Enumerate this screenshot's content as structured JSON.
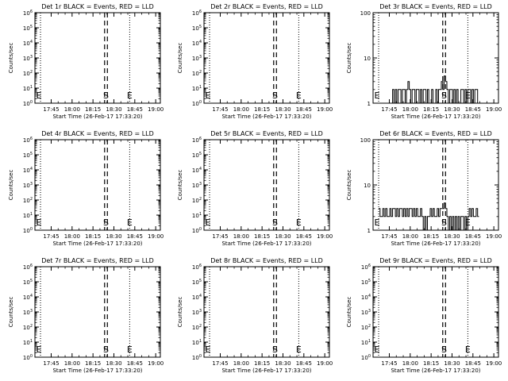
{
  "colors": {
    "events": "#000000",
    "lld": "#ff0000",
    "background": "#ffffff"
  },
  "common": {
    "x_axis_label": "Start Time (26-Feb-17 17:33:20)",
    "y_axis_label": "Counts/sec",
    "s_marker": "S",
    "e_marker": "E"
  },
  "chart_data": [
    {
      "type": "line",
      "title": "Det 1r BLACK = Events, RED = LLD",
      "yscale": "log",
      "ylim": [
        1,
        1000000
      ],
      "ytick_labels": [
        "10^0",
        "10^1",
        "10^2",
        "10^3",
        "10^4",
        "10^5",
        "10^6"
      ],
      "xtick_labels": [
        "17:45",
        "18:00",
        "18:15",
        "18:30",
        "18:45",
        "19:00"
      ],
      "xlim_min": [
        0,
        90
      ],
      "dotted_lines_min": [
        4,
        90
      ],
      "dashed_lines_min": [
        50,
        52
      ],
      "e_lines_min": [
        4,
        68
      ],
      "s_marker_min": 51,
      "e_marker_min": [
        0,
        68
      ],
      "series": []
    },
    {
      "type": "line",
      "title": "Det 2r BLACK = Events, RED = LLD",
      "yscale": "log",
      "ylim": [
        1,
        1000000
      ],
      "ytick_labels": [
        "10^0",
        "10^1",
        "10^2",
        "10^3",
        "10^4",
        "10^5",
        "10^6"
      ],
      "xtick_labels": [
        "17:45",
        "18:00",
        "18:15",
        "18:30",
        "18:45",
        "19:00"
      ],
      "xlim_min": [
        0,
        90
      ],
      "dotted_lines_min": [
        4,
        90
      ],
      "dashed_lines_min": [
        50,
        52
      ],
      "e_lines_min": [
        4,
        68
      ],
      "s_marker_min": 51,
      "e_marker_min": [
        0,
        68
      ],
      "series": []
    },
    {
      "type": "line",
      "title": "Det 3r BLACK = Events, RED = LLD",
      "yscale": "log",
      "ylim": [
        1,
        100
      ],
      "ytick_labels": [
        "1",
        "10",
        "100"
      ],
      "xtick_labels": [
        "17:45",
        "18:00",
        "18:15",
        "18:30",
        "18:45",
        "19:00"
      ],
      "xlim_min": [
        0,
        90
      ],
      "dotted_lines_min": [
        4,
        90
      ],
      "dashed_lines_min": [
        50,
        52
      ],
      "e_lines_min": [
        4,
        68
      ],
      "s_marker_min": 51,
      "e_marker_min": [
        0,
        68
      ],
      "series": [
        {
          "x": [
            13,
            14,
            15,
            16,
            17,
            18,
            19,
            20,
            21,
            22,
            23,
            24,
            25,
            26,
            27,
            28,
            29,
            30,
            31,
            32,
            33,
            34,
            35,
            36,
            37,
            38,
            39,
            40,
            41,
            42,
            43,
            44,
            45,
            46,
            47,
            48,
            49,
            50,
            51,
            52,
            53,
            54,
            55,
            56,
            57,
            58,
            59,
            60,
            61,
            62,
            63,
            64,
            65,
            66,
            67,
            68,
            69,
            70,
            71,
            72,
            73,
            74,
            75
          ],
          "y": [
            1,
            2,
            1,
            2,
            1,
            2,
            2,
            1,
            2,
            2,
            1,
            2,
            3,
            2,
            1,
            2,
            2,
            1,
            2,
            2,
            1,
            2,
            1,
            2,
            2,
            1,
            2,
            1,
            1,
            2,
            1,
            1,
            2,
            1,
            2,
            2,
            3,
            2,
            4,
            3,
            2,
            1,
            2,
            2,
            1,
            2,
            1,
            2,
            1,
            1,
            2,
            2,
            1,
            2,
            1,
            2,
            2,
            1,
            2,
            1,
            2,
            2,
            1
          ]
        }
      ]
    },
    {
      "type": "line",
      "title": "Det 4r BLACK = Events, RED = LLD",
      "yscale": "log",
      "ylim": [
        1,
        1000000
      ],
      "ytick_labels": [
        "10^0",
        "10^1",
        "10^2",
        "10^3",
        "10^4",
        "10^5",
        "10^6"
      ],
      "xtick_labels": [
        "17:45",
        "18:00",
        "18:15",
        "18:30",
        "18:45",
        "19:00"
      ],
      "xlim_min": [
        0,
        90
      ],
      "dotted_lines_min": [
        4,
        90
      ],
      "dashed_lines_min": [
        50,
        52
      ],
      "e_lines_min": [
        4,
        68
      ],
      "s_marker_min": 51,
      "e_marker_min": [
        0,
        68
      ],
      "series": []
    },
    {
      "type": "line",
      "title": "Det 5r BLACK = Events, RED = LLD",
      "yscale": "log",
      "ylim": [
        1,
        1000000
      ],
      "ytick_labels": [
        "10^0",
        "10^1",
        "10^2",
        "10^3",
        "10^4",
        "10^5",
        "10^6"
      ],
      "xtick_labels": [
        "17:45",
        "18:00",
        "18:15",
        "18:30",
        "18:45",
        "19:00"
      ],
      "xlim_min": [
        0,
        90
      ],
      "dotted_lines_min": [
        4,
        90
      ],
      "dashed_lines_min": [
        50,
        52
      ],
      "e_lines_min": [
        4,
        68
      ],
      "s_marker_min": 51,
      "e_marker_min": [
        0,
        68
      ],
      "series": []
    },
    {
      "type": "line",
      "title": "Det 6r BLACK = Events, RED = LLD",
      "yscale": "log",
      "ylim": [
        1,
        100
      ],
      "ytick_labels": [
        "1",
        "10",
        "100"
      ],
      "xtick_labels": [
        "17:45",
        "18:00",
        "18:15",
        "18:30",
        "18:45",
        "19:00"
      ],
      "xlim_min": [
        0,
        90
      ],
      "dotted_lines_min": [
        4,
        90
      ],
      "dashed_lines_min": [
        50,
        52
      ],
      "e_lines_min": [
        4,
        68
      ],
      "s_marker_min": 51,
      "e_marker_min": [
        0,
        68
      ],
      "series": [
        {
          "x": [
            4,
            5,
            6,
            7,
            8,
            9,
            10,
            11,
            12,
            13,
            14,
            15,
            16,
            17,
            18,
            19,
            20,
            21,
            22,
            23,
            24,
            25,
            26,
            27,
            28,
            29,
            30,
            31,
            32,
            33,
            34,
            35,
            36,
            37,
            38,
            39,
            40,
            41,
            42,
            43,
            44,
            45,
            46,
            47,
            48,
            49,
            50,
            51,
            52,
            53,
            54,
            55,
            56,
            57,
            58,
            59,
            60,
            61,
            62,
            63,
            64,
            65,
            66,
            67,
            68,
            69,
            70,
            71,
            72,
            73,
            74,
            75
          ],
          "y": [
            3,
            2,
            2,
            3,
            2,
            3,
            2,
            2,
            3,
            2,
            3,
            3,
            2,
            3,
            2,
            3,
            3,
            2,
            3,
            2,
            3,
            2,
            3,
            3,
            2,
            3,
            2,
            3,
            2,
            2,
            3,
            2,
            1,
            2,
            1,
            2,
            2,
            3,
            2,
            3,
            2,
            2,
            3,
            2,
            3,
            3,
            3,
            4,
            3,
            2,
            1,
            2,
            1,
            2,
            1,
            2,
            1,
            2,
            1,
            2,
            2,
            1,
            2,
            1,
            2,
            3,
            2,
            3,
            2,
            2,
            3,
            2
          ]
        }
      ]
    },
    {
      "type": "line",
      "title": "Det 7r BLACK = Events, RED = LLD",
      "yscale": "log",
      "ylim": [
        1,
        1000000
      ],
      "ytick_labels": [
        "10^0",
        "10^1",
        "10^2",
        "10^3",
        "10^4",
        "10^5",
        "10^6"
      ],
      "xtick_labels": [
        "17:45",
        "18:00",
        "18:15",
        "18:30",
        "18:45",
        "19:00"
      ],
      "xlim_min": [
        0,
        90
      ],
      "dotted_lines_min": [
        4,
        90
      ],
      "dashed_lines_min": [
        50,
        52
      ],
      "e_lines_min": [
        4,
        68
      ],
      "s_marker_min": 51,
      "e_marker_min": [
        0,
        68
      ],
      "series": []
    },
    {
      "type": "line",
      "title": "Det 8r BLACK = Events, RED = LLD",
      "yscale": "log",
      "ylim": [
        1,
        1000000
      ],
      "ytick_labels": [
        "10^0",
        "10^1",
        "10^2",
        "10^3",
        "10^4",
        "10^5",
        "10^6"
      ],
      "xtick_labels": [
        "17:45",
        "18:00",
        "18:15",
        "18:30",
        "18:45",
        "19:00"
      ],
      "xlim_min": [
        0,
        90
      ],
      "dotted_lines_min": [
        4,
        90
      ],
      "dashed_lines_min": [
        50,
        52
      ],
      "e_lines_min": [
        4,
        68
      ],
      "s_marker_min": 51,
      "e_marker_min": [
        0,
        68
      ],
      "series": []
    },
    {
      "type": "line",
      "title": "Det 9r BLACK = Events, RED = LLD",
      "yscale": "log",
      "ylim": [
        1,
        1000000
      ],
      "ytick_labels": [
        "10^0",
        "10^1",
        "10^2",
        "10^3",
        "10^4",
        "10^5",
        "10^6"
      ],
      "xtick_labels": [
        "17:45",
        "18:00",
        "18:15",
        "18:30",
        "18:45",
        "19:00"
      ],
      "xlim_min": [
        0,
        90
      ],
      "dotted_lines_min": [
        4,
        90
      ],
      "dashed_lines_min": [
        50,
        52
      ],
      "e_lines_min": [
        4,
        68
      ],
      "s_marker_min": 51,
      "e_marker_min": [
        0,
        68
      ],
      "series": []
    }
  ]
}
